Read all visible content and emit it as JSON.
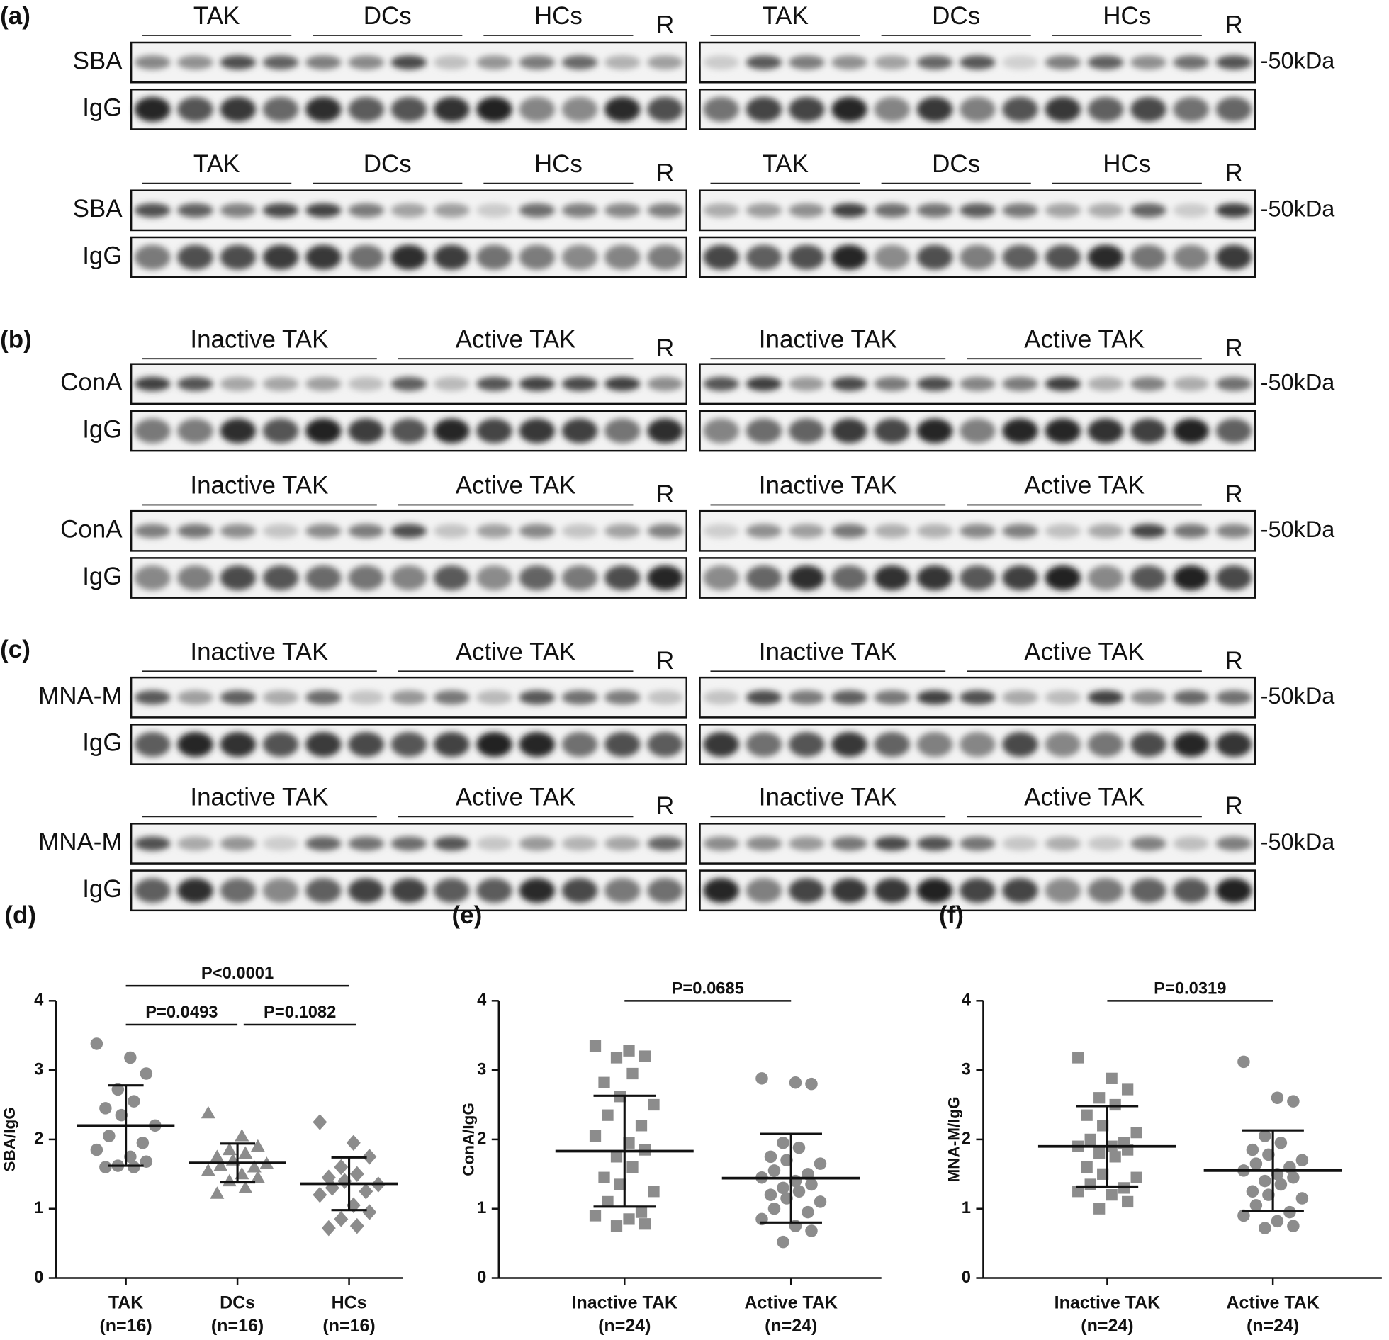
{
  "blots": [
    {
      "letter": "(a)",
      "groups": [
        "TAK",
        "DCs",
        "HCs"
      ],
      "ref": "R",
      "rows": [
        "SBA",
        "IgG"
      ],
      "marker": "-50kDa"
    },
    {
      "letter": "(b)",
      "groups": [
        "Inactive TAK",
        "Active TAK"
      ],
      "ref": "R",
      "rows": [
        "ConA",
        "IgG"
      ],
      "marker": "-50kDa"
    },
    {
      "letter": "(c)",
      "groups": [
        "Inactive TAK",
        "Active TAK"
      ],
      "ref": "R",
      "rows": [
        "MNA-M",
        "IgG"
      ],
      "marker": "-50kDa"
    }
  ],
  "chart_data": [
    {
      "type": "scatter",
      "letter": "(d)",
      "ylabel": "SBA/IgG",
      "ylim": [
        0,
        4
      ],
      "yticks": [
        0,
        1,
        2,
        3,
        4
      ],
      "categories": [
        "TAK",
        "DCs",
        "HCs"
      ],
      "category_notes": [
        "(n=16)",
        "(n=16)",
        "(n=16)"
      ],
      "series": [
        {
          "marker": "circle",
          "color": "#8c8c8c",
          "mean": 2.2,
          "sd": 0.58,
          "values": [
            3.38,
            3.18,
            2.95,
            2.72,
            2.55,
            2.45,
            2.35,
            2.2,
            2.05,
            1.95,
            1.85,
            1.75,
            1.68,
            1.62,
            1.6,
            1.6
          ]
        },
        {
          "marker": "triangle",
          "color": "#8c8c8c",
          "mean": 1.66,
          "sd": 0.28,
          "values": [
            2.38,
            2.05,
            1.9,
            1.85,
            1.8,
            1.75,
            1.7,
            1.65,
            1.62,
            1.6,
            1.55,
            1.5,
            1.45,
            1.4,
            1.3,
            1.22
          ]
        },
        {
          "marker": "diamond",
          "color": "#8c8c8c",
          "mean": 1.36,
          "sd": 0.38,
          "values": [
            2.25,
            1.95,
            1.75,
            1.6,
            1.5,
            1.45,
            1.4,
            1.35,
            1.3,
            1.25,
            1.2,
            1.05,
            0.95,
            0.85,
            0.75,
            0.72
          ]
        }
      ],
      "comparisons": [
        {
          "label": "P<0.0001",
          "between": [
            0,
            2
          ]
        },
        {
          "label": "P=0.0493",
          "between": [
            0,
            1
          ]
        },
        {
          "label": "P=0.1082",
          "between": [
            1,
            2
          ]
        }
      ]
    },
    {
      "type": "scatter",
      "letter": "(e)",
      "ylabel": "ConA/IgG",
      "ylim": [
        0,
        4
      ],
      "yticks": [
        0,
        1,
        2,
        3,
        4
      ],
      "categories": [
        "Inactive TAK",
        "Active TAK"
      ],
      "category_notes": [
        "(n=24)",
        "(n=24)"
      ],
      "series": [
        {
          "marker": "square",
          "color": "#8c8c8c",
          "mean": 1.83,
          "sd": 0.8,
          "values": [
            3.35,
            3.28,
            3.2,
            3.18,
            2.95,
            2.82,
            2.62,
            2.5,
            2.35,
            2.2,
            2.05,
            1.95,
            1.85,
            1.75,
            1.6,
            1.45,
            1.35,
            1.25,
            1.1,
            0.95,
            0.9,
            0.85,
            0.78,
            0.75
          ]
        },
        {
          "marker": "circle",
          "color": "#8c8c8c",
          "mean": 1.44,
          "sd": 0.64,
          "values": [
            2.88,
            2.82,
            2.8,
            1.95,
            1.88,
            1.75,
            1.7,
            1.65,
            1.55,
            1.5,
            1.45,
            1.4,
            1.35,
            1.3,
            1.25,
            1.2,
            1.15,
            1.1,
            1.0,
            0.95,
            0.85,
            0.75,
            0.68,
            0.52
          ]
        }
      ],
      "comparisons": [
        {
          "label": "P=0.0685",
          "between": [
            0,
            1
          ]
        }
      ]
    },
    {
      "type": "scatter",
      "letter": "(f)",
      "ylabel": "MNA-M/IgG",
      "ylim": [
        0,
        4
      ],
      "yticks": [
        0,
        1,
        2,
        3,
        4
      ],
      "categories": [
        "Inactive TAK",
        "Active TAK"
      ],
      "category_notes": [
        "(n=24)",
        "(n=24)"
      ],
      "series": [
        {
          "marker": "square",
          "color": "#8c8c8c",
          "mean": 1.9,
          "sd": 0.58,
          "values": [
            3.18,
            2.88,
            2.72,
            2.6,
            2.5,
            2.35,
            2.2,
            2.1,
            2.0,
            1.95,
            1.9,
            1.9,
            1.85,
            1.8,
            1.75,
            1.6,
            1.5,
            1.45,
            1.35,
            1.3,
            1.25,
            1.2,
            1.1,
            1.0
          ]
        },
        {
          "marker": "circle",
          "color": "#8c8c8c",
          "mean": 1.55,
          "sd": 0.58,
          "values": [
            3.12,
            2.6,
            2.55,
            2.05,
            1.95,
            1.85,
            1.78,
            1.7,
            1.65,
            1.6,
            1.55,
            1.5,
            1.45,
            1.4,
            1.35,
            1.25,
            1.2,
            1.15,
            1.05,
            0.95,
            0.9,
            0.82,
            0.75,
            0.72
          ]
        }
      ],
      "comparisons": [
        {
          "label": "P=0.0319",
          "between": [
            0,
            1
          ]
        }
      ]
    }
  ]
}
